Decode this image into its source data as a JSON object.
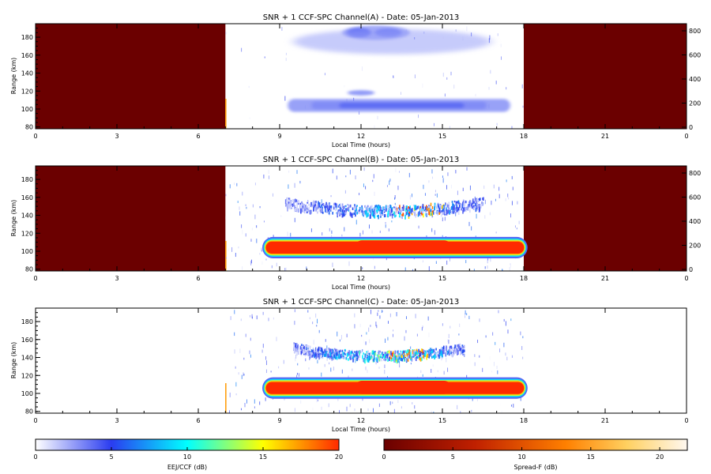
{
  "chart_data": [
    {
      "type": "heatmap",
      "title": "SNR + 1 CCF-SPC Channel(A) - Date: 05-Jan-2013",
      "xlabel": "Local Time (hours)",
      "ylabel": "Range (km)",
      "xlim": [
        0,
        24
      ],
      "ylim": [
        78,
        195
      ],
      "x_ticks": [
        "0",
        "3",
        "6",
        "9",
        "12",
        "15",
        "18",
        "21",
        "0"
      ],
      "y_ticks": [
        "80",
        "100",
        "120",
        "140",
        "160",
        "180"
      ],
      "y2_ticks": [
        "0",
        "200",
        "400",
        "600",
        "800"
      ],
      "spreadf_blocks": [
        [
          0,
          7
        ],
        [
          18,
          24
        ]
      ],
      "features": [
        {
          "kind": "eej",
          "t0": 9.3,
          "t1": 17.5,
          "center_km": 104,
          "half_width_km": 4,
          "level_db": 3
        },
        {
          "kind": "bump",
          "t0": 11.5,
          "t1": 12.5,
          "center_km": 118,
          "half_width_km": 3,
          "level_db": 3
        },
        {
          "kind": "cloud",
          "t0": 11.3,
          "t1": 13.8,
          "center_km": 185,
          "half_width_km": 5,
          "level_db": 4
        },
        {
          "kind": "haze",
          "t0": 9.5,
          "t1": 16.8,
          "center_km": 175,
          "half_width_km": 14,
          "level_db": 1
        }
      ]
    },
    {
      "type": "heatmap",
      "title": "SNR + 1 CCF-SPC Channel(B) - Date: 05-Jan-2013",
      "xlabel": "Local Time (hours)",
      "ylabel": "Range (km)",
      "xlim": [
        0,
        24
      ],
      "ylim": [
        78,
        195
      ],
      "x_ticks": [
        "0",
        "3",
        "6",
        "9",
        "12",
        "15",
        "18",
        "21",
        "0"
      ],
      "y_ticks": [
        "80",
        "100",
        "120",
        "140",
        "160",
        "180"
      ],
      "y2_ticks": [
        "0",
        "200",
        "400",
        "600",
        "800"
      ],
      "spreadf_blocks": [
        [
          0,
          7
        ],
        [
          18,
          24
        ]
      ],
      "features": [
        {
          "kind": "eej",
          "t0": 8.5,
          "t1": 18,
          "center_km": 104,
          "half_width_km": 7,
          "level_db": 20
        },
        {
          "kind": "arc",
          "t0": 9.2,
          "t1": 16.5,
          "center_km": 146,
          "half_width_km": 6,
          "level_db": 8
        }
      ]
    },
    {
      "type": "heatmap",
      "title": "SNR + 1 CCF-SPC Channel(C) - Date: 05-Jan-2013",
      "xlabel": "Local Time (hours)",
      "ylabel": "Range (km)",
      "xlim": [
        0,
        24
      ],
      "ylim": [
        78,
        195
      ],
      "x_ticks": [
        "0",
        "3",
        "6",
        "9",
        "12",
        "15",
        "18",
        "21",
        "0"
      ],
      "y_ticks": [
        "80",
        "100",
        "120",
        "140",
        "160",
        "180"
      ],
      "y2_ticks": [],
      "spreadf_blocks": [],
      "features": [
        {
          "kind": "eej",
          "t0": 8.5,
          "t1": 18,
          "center_km": 106,
          "half_width_km": 7,
          "level_db": 20
        },
        {
          "kind": "arc",
          "t0": 9.5,
          "t1": 15.8,
          "center_km": 143,
          "half_width_km": 5,
          "level_db": 10
        }
      ]
    }
  ],
  "colorbars": [
    {
      "label": "EEJ/CCF (dB)",
      "ticks": [
        "0",
        "5",
        "10",
        "15",
        "20"
      ],
      "range": [
        0,
        20
      ],
      "colors": [
        "#ffffff",
        "#2a3cf0",
        "#00ffff",
        "#ffff00",
        "#ff2a00"
      ]
    },
    {
      "label": "Spread-F (dB)",
      "ticks": [
        "0",
        "5",
        "10",
        "15",
        "20"
      ],
      "range": [
        0,
        22
      ],
      "colors": [
        "#6a0000",
        "#c02000",
        "#ff8000",
        "#ffd060",
        "#fff8f0"
      ]
    }
  ]
}
